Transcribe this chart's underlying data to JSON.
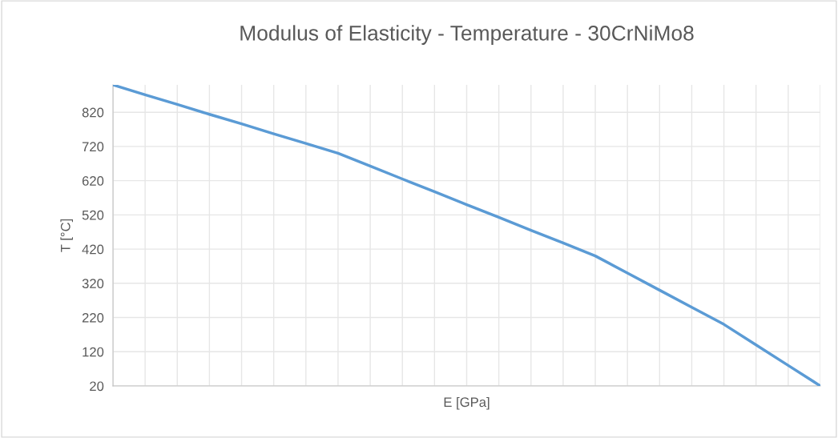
{
  "chart_data": {
    "type": "line",
    "title": "Modulus of Elasticity - Temperature - 30CrNiMo8",
    "xlabel": "E [GPa]",
    "ylabel": "T [°C]",
    "categories": [
      null,
      null,
      null,
      null,
      null,
      null,
      null,
      null,
      null,
      null,
      null,
      null,
      null,
      null,
      null,
      null,
      null,
      null,
      null,
      null,
      null,
      null,
      null
    ],
    "series": [
      {
        "color": "#5b9bd5",
        "values": [
          900,
          871,
          843,
          814,
          786,
          757,
          729,
          700,
          663,
          625,
          588,
          550,
          513,
          475,
          438,
          400,
          350,
          300,
          250,
          200,
          140,
          80,
          20
        ]
      }
    ],
    "ylim": [
      20,
      900
    ],
    "yticks": [
      20,
      120,
      220,
      320,
      420,
      520,
      620,
      720,
      820
    ],
    "tick_labels": "y",
    "grid": true,
    "marker": "none",
    "line_style": "solid"
  }
}
